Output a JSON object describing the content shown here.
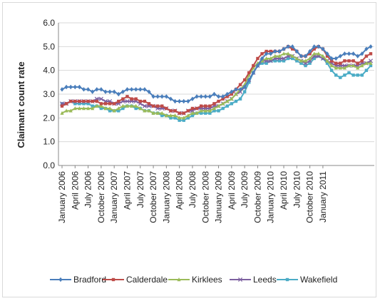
{
  "chart_data": {
    "type": "line",
    "title": "",
    "xlabel": "",
    "ylabel": "Claimant count rate",
    "ylim": [
      0,
      6
    ],
    "yticks": [
      "0.0",
      "1.0",
      "2.0",
      "3.0",
      "4.0",
      "5.0",
      "6.0"
    ],
    "xtick_labels": [
      "January 2006",
      "April 2006",
      "July 2006",
      "October 2006",
      "January 2007",
      "April 2007",
      "July 2007",
      "October 2007",
      "January 2008",
      "April 2008",
      "July 2008",
      "October 2008",
      "January 2009",
      "April 2009",
      "July 2009",
      "October 2009",
      "January 2010",
      "April 2010",
      "July 2010",
      "October 2010",
      "January 2011"
    ],
    "x_start": "January 2006",
    "x_end": "February 2011",
    "grid": "horizontal",
    "legend_position": "bottom",
    "series": [
      {
        "name": "Bradford",
        "color": "#4a7ebb",
        "marker": "diamond",
        "values": [
          3.2,
          3.3,
          3.3,
          3.3,
          3.3,
          3.2,
          3.2,
          3.1,
          3.2,
          3.2,
          3.1,
          3.1,
          3.1,
          3.0,
          3.1,
          3.2,
          3.2,
          3.2,
          3.2,
          3.2,
          3.1,
          2.9,
          2.9,
          2.9,
          2.9,
          2.8,
          2.7,
          2.7,
          2.7,
          2.7,
          2.8,
          2.9,
          2.9,
          2.9,
          2.9,
          3.0,
          2.9,
          2.9,
          3.0,
          3.1,
          3.2,
          3.2,
          3.3,
          3.6,
          3.9,
          4.2,
          4.5,
          4.7,
          4.7,
          4.8,
          4.8,
          4.9,
          5.0,
          5.0,
          4.8,
          4.6,
          4.6,
          4.8,
          5.0,
          5.0,
          4.9,
          4.7,
          4.5,
          4.5,
          4.6,
          4.7,
          4.7,
          4.7,
          4.6,
          4.7,
          4.9,
          5.0
        ]
      },
      {
        "name": "Calderdale",
        "color": "#be4b48",
        "marker": "square",
        "values": [
          2.5,
          2.6,
          2.7,
          2.7,
          2.7,
          2.7,
          2.7,
          2.7,
          2.7,
          2.6,
          2.6,
          2.6,
          2.6,
          2.7,
          2.8,
          2.9,
          2.8,
          2.8,
          2.7,
          2.7,
          2.6,
          2.5,
          2.5,
          2.5,
          2.4,
          2.3,
          2.3,
          2.2,
          2.2,
          2.3,
          2.4,
          2.4,
          2.5,
          2.5,
          2.5,
          2.6,
          2.7,
          2.8,
          2.9,
          3.0,
          3.2,
          3.4,
          3.6,
          3.9,
          4.2,
          4.5,
          4.7,
          4.8,
          4.8,
          4.8,
          4.8,
          4.9,
          5.0,
          4.9,
          4.8,
          4.6,
          4.6,
          4.7,
          4.9,
          5.0,
          4.9,
          4.6,
          4.4,
          4.3,
          4.3,
          4.4,
          4.4,
          4.4,
          4.3,
          4.4,
          4.6,
          4.7
        ]
      },
      {
        "name": "Kirklees",
        "color": "#9bbb59",
        "marker": "triangle",
        "values": [
          2.2,
          2.3,
          2.3,
          2.4,
          2.4,
          2.4,
          2.4,
          2.4,
          2.5,
          2.5,
          2.4,
          2.4,
          2.3,
          2.4,
          2.5,
          2.5,
          2.5,
          2.5,
          2.4,
          2.3,
          2.3,
          2.2,
          2.2,
          2.2,
          2.1,
          2.1,
          2.1,
          2.0,
          2.0,
          2.1,
          2.2,
          2.2,
          2.3,
          2.3,
          2.3,
          2.4,
          2.5,
          2.6,
          2.7,
          2.8,
          3.0,
          3.2,
          3.4,
          3.8,
          4.1,
          4.3,
          4.4,
          4.5,
          4.5,
          4.6,
          4.6,
          4.7,
          4.7,
          4.6,
          4.5,
          4.4,
          4.4,
          4.5,
          4.7,
          4.7,
          4.6,
          4.4,
          4.2,
          4.1,
          4.1,
          4.1,
          4.2,
          4.2,
          4.1,
          4.2,
          4.3,
          4.3
        ]
      },
      {
        "name": "Leeds",
        "color": "#7d60a0",
        "marker": "x",
        "values": [
          2.6,
          2.6,
          2.7,
          2.7,
          2.7,
          2.7,
          2.7,
          2.7,
          2.8,
          2.8,
          2.7,
          2.7,
          2.6,
          2.6,
          2.7,
          2.7,
          2.7,
          2.7,
          2.6,
          2.5,
          2.5,
          2.5,
          2.4,
          2.4,
          2.4,
          2.3,
          2.3,
          2.2,
          2.2,
          2.3,
          2.3,
          2.4,
          2.4,
          2.4,
          2.4,
          2.5,
          2.5,
          2.6,
          2.7,
          2.8,
          3.0,
          3.1,
          3.3,
          3.6,
          3.9,
          4.2,
          4.4,
          4.4,
          4.4,
          4.5,
          4.5,
          4.5,
          4.6,
          4.6,
          4.5,
          4.4,
          4.3,
          4.4,
          4.6,
          4.6,
          4.5,
          4.4,
          4.3,
          4.2,
          4.2,
          4.2,
          4.2,
          4.2,
          4.2,
          4.3,
          4.3,
          4.4
        ]
      },
      {
        "name": "Wakefield",
        "color": "#4bacc6",
        "marker": "square",
        "values": [
          2.6,
          2.6,
          2.7,
          2.6,
          2.6,
          2.6,
          2.6,
          2.5,
          2.5,
          2.4,
          2.4,
          2.3,
          2.3,
          2.3,
          2.4,
          2.5,
          2.5,
          2.4,
          2.4,
          2.3,
          2.3,
          2.2,
          2.2,
          2.1,
          2.1,
          2.0,
          2.0,
          1.9,
          1.9,
          2.0,
          2.1,
          2.2,
          2.2,
          2.2,
          2.2,
          2.3,
          2.3,
          2.4,
          2.5,
          2.6,
          2.7,
          2.8,
          3.1,
          3.5,
          3.9,
          4.2,
          4.3,
          4.3,
          4.4,
          4.4,
          4.4,
          4.4,
          4.5,
          4.5,
          4.4,
          4.3,
          4.2,
          4.3,
          4.5,
          4.6,
          4.5,
          4.3,
          4.0,
          3.8,
          3.7,
          3.8,
          3.9,
          3.8,
          3.8,
          3.8,
          4.0,
          4.2
        ]
      }
    ]
  }
}
